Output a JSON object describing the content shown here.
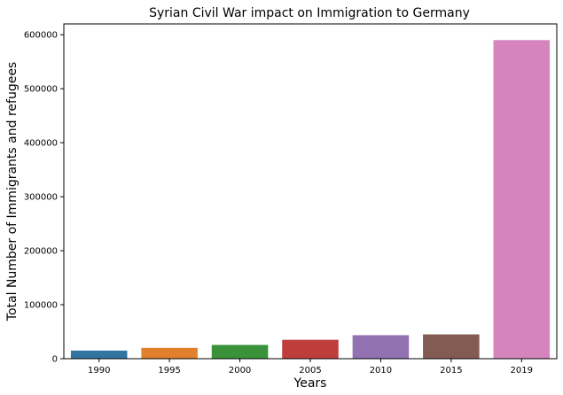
{
  "chart_data": {
    "type": "bar",
    "title": "Syrian Civil War impact on Immigration to Germany",
    "xlabel": "Years",
    "ylabel": "Total Number of Immigrants and refugees",
    "categories": [
      "1990",
      "1995",
      "2000",
      "2005",
      "2010",
      "2015",
      "2019"
    ],
    "values": [
      15000,
      20000,
      25500,
      35000,
      43500,
      45000,
      590000
    ],
    "colors": [
      "#3274a1",
      "#e1812c",
      "#3a923a",
      "#c03d3e",
      "#9372b2",
      "#845b53",
      "#d684bd"
    ],
    "ylim": [
      0,
      620000
    ],
    "yticks": [
      0,
      100000,
      200000,
      300000,
      400000,
      500000,
      600000
    ],
    "ytick_labels": [
      "0",
      "100000",
      "200000",
      "300000",
      "400000",
      "500000",
      "600000"
    ],
    "grid": false,
    "legend": "none"
  }
}
